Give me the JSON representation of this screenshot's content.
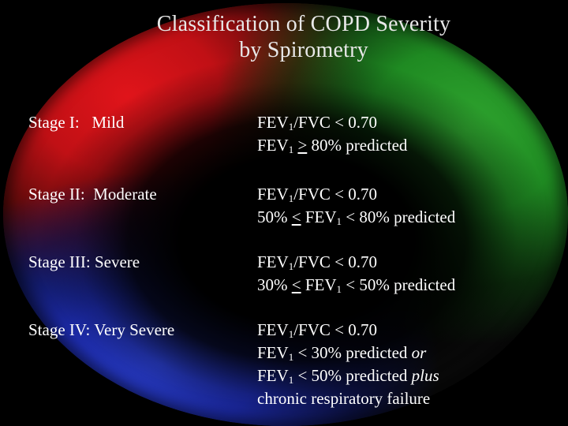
{
  "title": {
    "line1": "Classification of COPD Severity",
    "line2": "by Spirometry"
  },
  "stages": [
    {
      "label": "Stage I:   Mild",
      "criteria": [
        {
          "pre": "FEV",
          "sub": "1",
          "mid": "/FVC < 0.70",
          "ul": "",
          "post": ""
        },
        {
          "pre": "FEV",
          "sub": "1",
          "mid": " ",
          "ul": ">",
          "post": " 80% predicted"
        }
      ]
    },
    {
      "label": "Stage II:  Moderate",
      "criteria": [
        {
          "pre": "FEV",
          "sub": "1",
          "mid": "/FVC < 0.70"
        },
        {
          "a": "50% ",
          "ul": "<",
          "b": " FEV",
          "sub": "1",
          "c": " < 80% predicted"
        }
      ]
    },
    {
      "label": "Stage III: Severe",
      "criteria": [
        {
          "pre": "FEV",
          "sub": "1",
          "mid": "/FVC < 0.70"
        },
        {
          "a": "30% ",
          "ul": "<",
          "b": " FEV",
          "sub": "1",
          "c": " < 50% predicted"
        }
      ]
    },
    {
      "label": "Stage IV: Very Severe",
      "criteria": [
        {
          "pre": "FEV",
          "sub": "1",
          "mid": "/FVC < 0.70"
        },
        {
          "pre": "FEV",
          "sub": "1",
          "mid": " < 30% predicted ",
          "em": "or"
        },
        {
          "pre": "FEV",
          "sub": "1",
          "mid": " < 50% predicted ",
          "em": "plus"
        },
        {
          "text": "chronic respiratory failure"
        }
      ]
    }
  ],
  "colors": {
    "background": "#000000",
    "red": "#e0141a",
    "green": "#2fa52f",
    "blue": "#2a3fd0",
    "text": "#ffffff",
    "title_text": "#e8e8e8"
  }
}
